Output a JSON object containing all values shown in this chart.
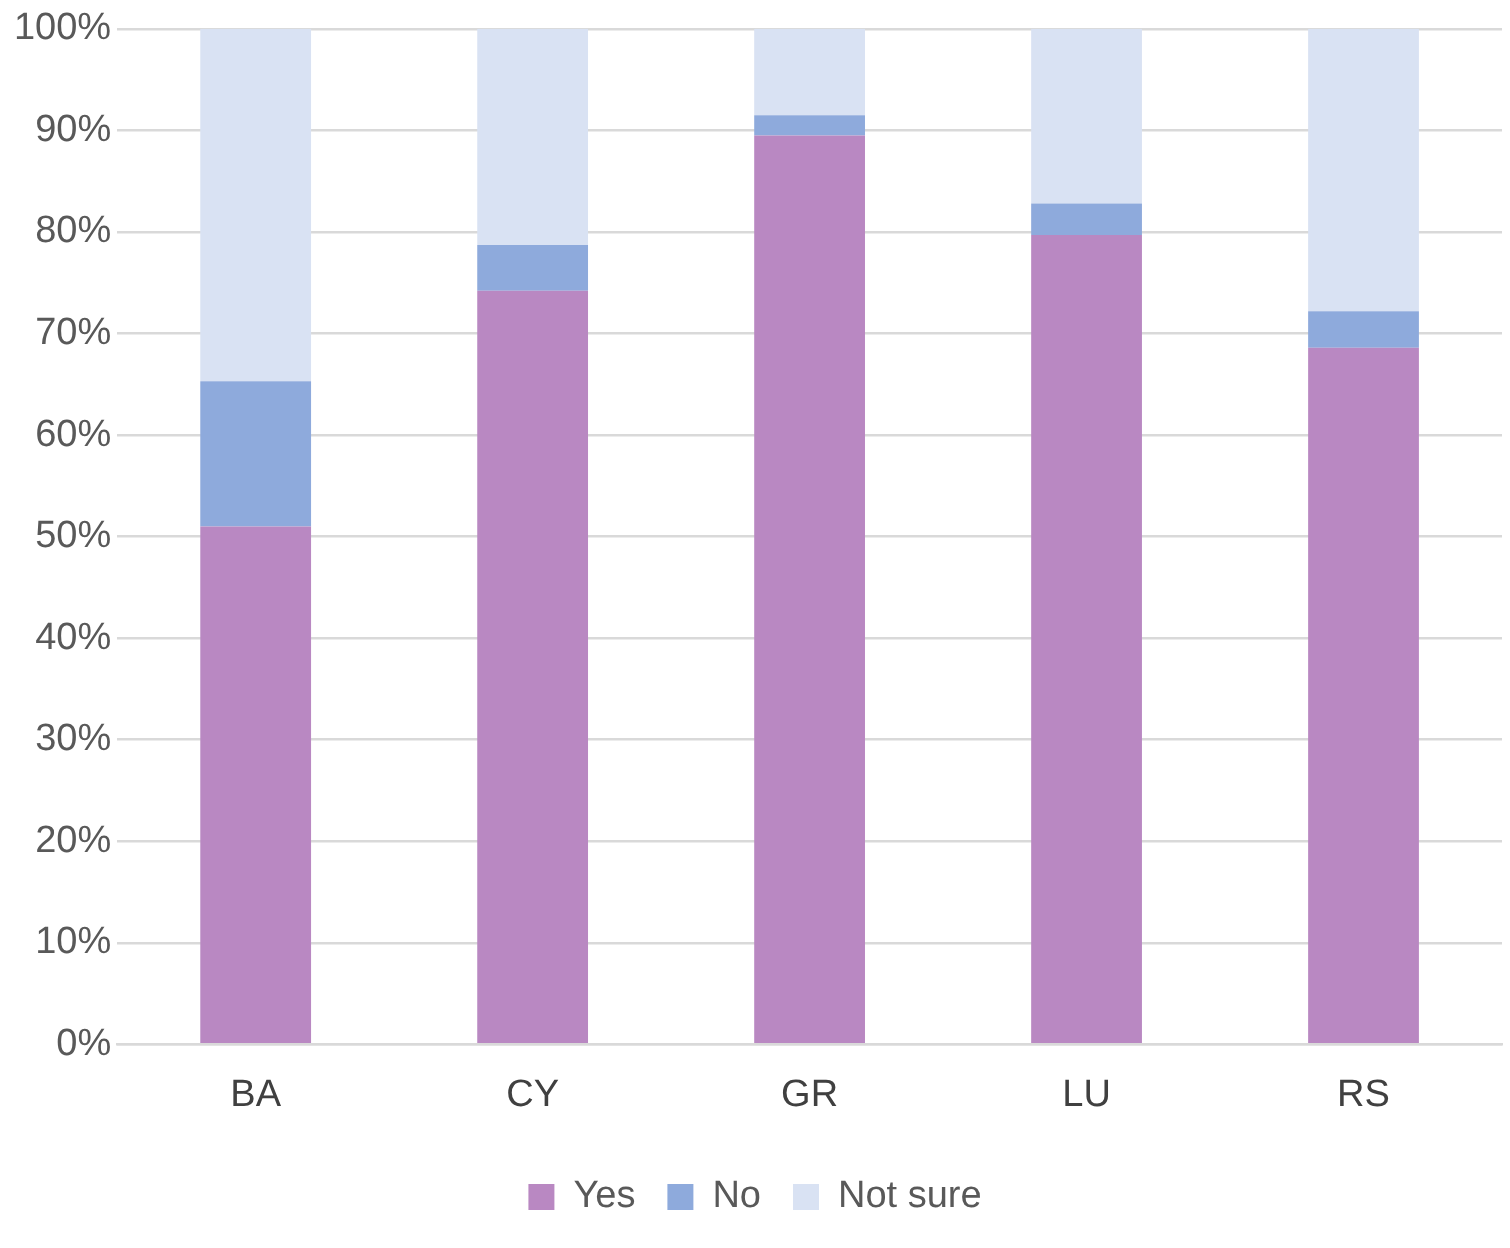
{
  "chart_data": {
    "type": "bar",
    "stacked": true,
    "categories": [
      "BA",
      "CY",
      "GR",
      "LU",
      "RS"
    ],
    "series": [
      {
        "name": "Yes",
        "color": "#b988c2",
        "values": [
          51,
          74.2,
          89.5,
          79.7,
          68.6
        ]
      },
      {
        "name": "No",
        "color": "#8eaadc",
        "values": [
          14.3,
          4.5,
          2,
          3.1,
          3.6
        ]
      },
      {
        "name": "Not sure",
        "color": "#d9e2f3",
        "values": [
          34.7,
          21.3,
          8.5,
          17.2,
          27.8
        ]
      }
    ],
    "ylim": [
      0,
      100
    ],
    "yticks": [
      {
        "value": 0,
        "label": "0%"
      },
      {
        "value": 10,
        "label": "10%"
      },
      {
        "value": 20,
        "label": "20%"
      },
      {
        "value": 30,
        "label": "30%"
      },
      {
        "value": 40,
        "label": "40%"
      },
      {
        "value": 50,
        "label": "50%"
      },
      {
        "value": 60,
        "label": "60%"
      },
      {
        "value": 70,
        "label": "70%"
      },
      {
        "value": 80,
        "label": "80%"
      },
      {
        "value": 90,
        "label": "90%"
      },
      {
        "value": 100,
        "label": "100%"
      }
    ],
    "grid": "y",
    "legend": "bottom"
  }
}
